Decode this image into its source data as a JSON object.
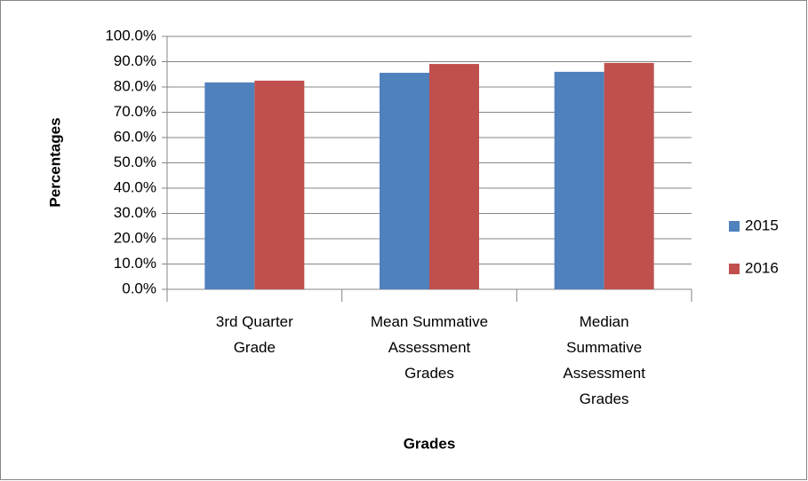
{
  "chart_data": {
    "type": "bar",
    "categories": [
      "3rd Quarter\nGrade",
      "Mean Summative\nAssessment\nGrades",
      "Median\nSummative\nAssessment\nGrades"
    ],
    "series": [
      {
        "name": "2015",
        "color": "#4f81bd",
        "values": [
          81.8,
          85.6,
          86.0
        ]
      },
      {
        "name": "2016",
        "color": "#c0504d",
        "values": [
          82.5,
          89.1,
          89.5
        ]
      }
    ],
    "ylim": [
      0,
      100
    ],
    "yticks": [
      {
        "value": 0,
        "label": "0.0%"
      },
      {
        "value": 10,
        "label": "10.0%"
      },
      {
        "value": 20,
        "label": "20.0%"
      },
      {
        "value": 30,
        "label": "30.0%"
      },
      {
        "value": 40,
        "label": "40.0%"
      },
      {
        "value": 50,
        "label": "50.0%"
      },
      {
        "value": 60,
        "label": "60.0%"
      },
      {
        "value": 70,
        "label": "70.0%"
      },
      {
        "value": 80,
        "label": "80.0%"
      },
      {
        "value": 90,
        "label": "90.0%"
      },
      {
        "value": 100,
        "label": "100.0%"
      }
    ],
    "xlabel": "Grades",
    "ylabel": "Percentages",
    "grid": true,
    "legend": "right"
  }
}
